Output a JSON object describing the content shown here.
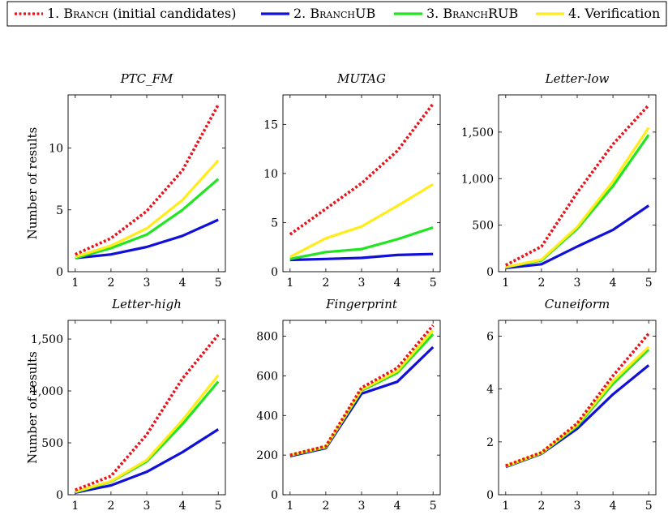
{
  "legend": [
    {
      "label_prefix": "1. ",
      "label_sc": "Branch",
      "label_suffix": " (initial candidates)",
      "color": "#e8141c",
      "dash": true
    },
    {
      "label_prefix": "2. ",
      "label_sc": "BranchUB",
      "label_suffix": "",
      "color": "#1010d8",
      "dash": false
    },
    {
      "label_prefix": "3. ",
      "label_sc": "BranchRUB",
      "label_suffix": "",
      "color": "#22e522",
      "dash": false
    },
    {
      "label_prefix": "4. ",
      "label_sc": "",
      "label_suffix": "Verification",
      "color": "#ffec1a",
      "dash": false
    }
  ],
  "ylabel": "Number of results",
  "chart_data": [
    {
      "type": "line",
      "title": "PTC_FM",
      "x": [
        1,
        2,
        3,
        4,
        5
      ],
      "xlim": [
        0.8,
        5.2
      ],
      "ylim": [
        0,
        14.3
      ],
      "yticks": [
        0,
        5,
        10
      ],
      "ytick_labels": [
        "0",
        "5",
        "10"
      ],
      "series": [
        {
          "name": "1. Branch (initial candidates)",
          "values": [
            1.4,
            2.7,
            4.9,
            8.2,
            13.5
          ]
        },
        {
          "name": "2. BranchUB",
          "values": [
            1.1,
            1.4,
            2.0,
            2.9,
            4.2
          ]
        },
        {
          "name": "3. BranchRUB",
          "values": [
            1.1,
            1.9,
            3.0,
            5.0,
            7.5
          ]
        },
        {
          "name": "4. Verification",
          "values": [
            1.2,
            2.1,
            3.5,
            5.8,
            9.0
          ]
        }
      ]
    },
    {
      "type": "line",
      "title": "MUTAG",
      "x": [
        1,
        2,
        3,
        4,
        5
      ],
      "xlim": [
        0.8,
        5.2
      ],
      "ylim": [
        0,
        18
      ],
      "yticks": [
        0,
        5,
        10,
        15
      ],
      "ytick_labels": [
        "0",
        "5",
        "10",
        "15"
      ],
      "series": [
        {
          "name": "1. Branch (initial candidates)",
          "values": [
            3.8,
            6.4,
            9.0,
            12.3,
            17.1
          ]
        },
        {
          "name": "2. BranchUB",
          "values": [
            1.2,
            1.3,
            1.4,
            1.7,
            1.8
          ]
        },
        {
          "name": "3. BranchRUB",
          "values": [
            1.3,
            2.0,
            2.3,
            3.3,
            4.5
          ]
        },
        {
          "name": "4. Verification",
          "values": [
            1.5,
            3.4,
            4.6,
            6.7,
            8.9
          ]
        }
      ]
    },
    {
      "type": "line",
      "title": "Letter-low",
      "x": [
        1,
        2,
        3,
        4,
        5
      ],
      "xlim": [
        0.8,
        5.2
      ],
      "ylim": [
        0,
        1900
      ],
      "yticks": [
        0,
        500,
        1000,
        1500
      ],
      "ytick_labels": [
        "0",
        "500",
        "1,000",
        "1,500"
      ],
      "series": [
        {
          "name": "1. Branch (initial candidates)",
          "values": [
            70,
            270,
            850,
            1370,
            1790
          ]
        },
        {
          "name": "2. BranchUB",
          "values": [
            40,
            80,
            270,
            450,
            710
          ]
        },
        {
          "name": "3. BranchRUB",
          "values": [
            50,
            120,
            460,
            920,
            1470
          ]
        },
        {
          "name": "4. Verification",
          "values": [
            50,
            130,
            480,
            970,
            1550
          ]
        }
      ]
    },
    {
      "type": "line",
      "title": "Letter-high",
      "x": [
        1,
        2,
        3,
        4,
        5
      ],
      "xlim": [
        0.8,
        5.2
      ],
      "ylim": [
        0,
        1680
      ],
      "yticks": [
        0,
        500,
        1000,
        1500
      ],
      "ytick_labels": [
        "0",
        "500",
        "1,000",
        "1,500"
      ],
      "series": [
        {
          "name": "1. Branch (initial candidates)",
          "values": [
            45,
            180,
            580,
            1120,
            1540
          ]
        },
        {
          "name": "2. BranchUB",
          "values": [
            20,
            90,
            220,
            410,
            630
          ]
        },
        {
          "name": "3. BranchRUB",
          "values": [
            25,
            125,
            320,
            680,
            1090
          ]
        },
        {
          "name": "4. Verification",
          "values": [
            30,
            130,
            335,
            720,
            1150
          ]
        }
      ]
    },
    {
      "type": "line",
      "title": "Fingerprint",
      "x": [
        1,
        2,
        3,
        4,
        5
      ],
      "xlim": [
        0.8,
        5.2
      ],
      "ylim": [
        0,
        880
      ],
      "yticks": [
        0,
        200,
        400,
        600,
        800
      ],
      "ytick_labels": [
        "0",
        "200",
        "400",
        "600",
        "800"
      ],
      "series": [
        {
          "name": "1. Branch (initial candidates)",
          "values": [
            200,
            245,
            540,
            640,
            855
          ]
        },
        {
          "name": "2. BranchUB",
          "values": [
            195,
            235,
            510,
            570,
            745
          ]
        },
        {
          "name": "3. BranchRUB",
          "values": [
            198,
            240,
            525,
            615,
            810
          ]
        },
        {
          "name": "4. Verification",
          "values": [
            200,
            242,
            530,
            625,
            830
          ]
        }
      ]
    },
    {
      "type": "line",
      "title": "Cuneiform",
      "x": [
        1,
        2,
        3,
        4,
        5
      ],
      "xlim": [
        0.8,
        5.2
      ],
      "ylim": [
        0,
        6.6
      ],
      "yticks": [
        0,
        2,
        4,
        6
      ],
      "ytick_labels": [
        "0",
        "2",
        "4",
        "6"
      ],
      "series": [
        {
          "name": "1. Branch (initial candidates)",
          "values": [
            1.1,
            1.6,
            2.7,
            4.5,
            6.1
          ]
        },
        {
          "name": "2. BranchUB",
          "values": [
            1.05,
            1.55,
            2.5,
            3.8,
            4.9
          ]
        },
        {
          "name": "3. BranchRUB",
          "values": [
            1.07,
            1.57,
            2.6,
            4.2,
            5.5
          ]
        },
        {
          "name": "4. Verification",
          "values": [
            1.08,
            1.58,
            2.65,
            4.3,
            5.6
          ]
        }
      ]
    }
  ]
}
